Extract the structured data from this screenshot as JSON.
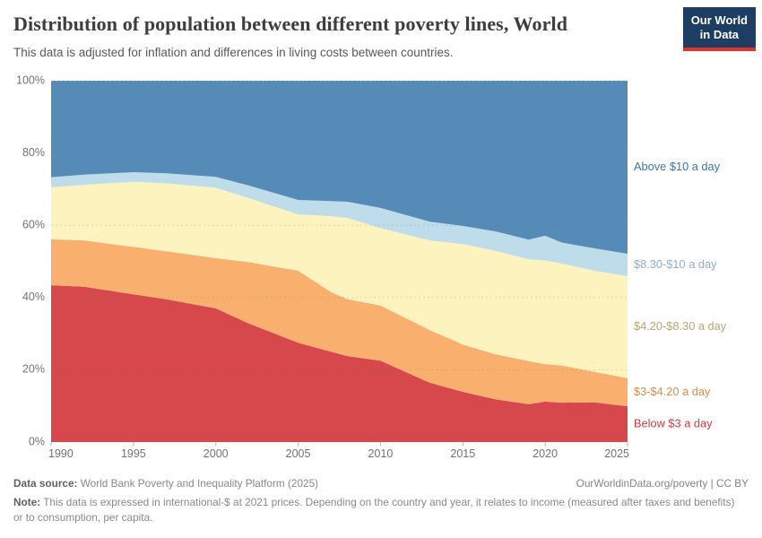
{
  "header": {
    "title": "Distribution of population between different poverty lines, World",
    "subtitle": "This data is adjusted for inflation and differences in living costs between countries."
  },
  "logo": {
    "line1": "Our World",
    "line2": "in Data",
    "bg_color": "#1d3d63",
    "stripe_color": "#e0332e"
  },
  "chart_data": {
    "type": "area",
    "stacked": true,
    "title": "Distribution of population between different poverty lines, World",
    "xlabel": "",
    "ylabel": "",
    "ylim": [
      0,
      100
    ],
    "grid": "dashed-horizontal",
    "legend_position": "right",
    "x": [
      1990,
      1992,
      1995,
      1997,
      2000,
      2002,
      2005,
      2007,
      2008,
      2010,
      2013,
      2015,
      2017,
      2019,
      2020,
      2021,
      2023,
      2025
    ],
    "x_ticks": [
      1990,
      1995,
      2000,
      2005,
      2010,
      2015,
      2020,
      2025
    ],
    "y_ticks": [
      "0%",
      "20%",
      "40%",
      "60%",
      "80%",
      "100%"
    ],
    "y_tick_values": [
      0,
      20,
      40,
      60,
      80,
      100
    ],
    "series": [
      {
        "id": "below-3",
        "label": "Below $3 a day",
        "color": "#d7484d",
        "label_color": "#d03d46",
        "values": [
          43.4,
          43.0,
          40.9,
          39.5,
          37.0,
          32.8,
          27.5,
          25.0,
          23.8,
          22.5,
          16.4,
          13.9,
          11.8,
          10.5,
          11.2,
          10.9,
          11.0,
          9.9
        ]
      },
      {
        "id": "3-to-4-20",
        "label": "$3-$4.20 a day",
        "color": "#f9b06f",
        "label_color": "#d7904c",
        "values": [
          12.7,
          12.8,
          13.1,
          13.3,
          13.9,
          17.0,
          19.9,
          16.5,
          15.7,
          15.3,
          14.6,
          13.1,
          12.5,
          11.9,
          10.4,
          10.3,
          8.4,
          7.8
        ]
      },
      {
        "id": "4-20-to-8-30",
        "label": "$4.20-$8.30 a day",
        "color": "#fdf3bf",
        "label_color": "#b3aa6e",
        "values": [
          14.4,
          15.4,
          18.0,
          18.8,
          19.5,
          17.7,
          15.6,
          21.0,
          22.5,
          21.4,
          24.8,
          27.8,
          28.6,
          28.2,
          28.7,
          28.2,
          28.0,
          28.2
        ]
      },
      {
        "id": "8-30-to-10",
        "label": "$8.30-$10 a day",
        "color": "#bedce9",
        "label_color": "#8fb2c6",
        "values": [
          2.8,
          2.8,
          2.7,
          2.8,
          3.0,
          3.5,
          4.0,
          4.2,
          4.5,
          5.6,
          5.2,
          5.0,
          5.4,
          5.4,
          6.8,
          5.8,
          6.2,
          6.2
        ]
      },
      {
        "id": "above-10",
        "label": "Above $10 a day",
        "color": "#568bb8",
        "label_color": "#3d76b0",
        "values": [
          26.7,
          26.0,
          25.3,
          25.6,
          26.6,
          29.0,
          33.0,
          33.3,
          33.5,
          35.2,
          39.0,
          40.2,
          41.7,
          44.0,
          42.9,
          44.8,
          46.4,
          47.9
        ]
      }
    ]
  },
  "footer": {
    "datasource_label": "Data source:",
    "datasource_value": " World Bank Poverty and Inequality Platform (2025)",
    "link": "OurWorldinData.org/poverty | CC BY",
    "note_label": "Note:",
    "note_value": " This data is expressed in international-$ at 2021 prices. Depending on the country and year, it relates to income (measured after taxes and benefits) or to consumption, per capita."
  }
}
